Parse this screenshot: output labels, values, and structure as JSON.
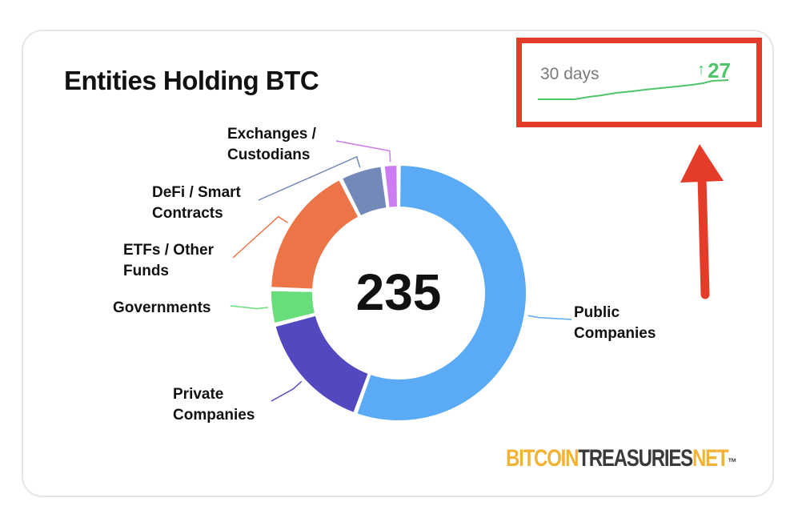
{
  "title": "Entities Holding BTC",
  "trend": {
    "label": "30 days",
    "arrow": "↑",
    "value": "27",
    "line_color": "#4fc46a",
    "highlight_color": "#e53b29"
  },
  "logo": {
    "part1": "BITCOIN",
    "part2": "TREASURIES",
    "part3": "NET",
    "mark": "™"
  },
  "chart_data": {
    "type": "pie",
    "variant": "donut",
    "total": "235",
    "categories": [
      "Public Companies",
      "Private Companies",
      "Governments",
      "ETFs / Other Funds",
      "DeFi / Smart Contracts",
      "Exchanges / Custodians"
    ],
    "label_text": [
      "Public\nCompanies",
      "Private\nCompanies",
      "Governments",
      "ETFs / Other\nFunds",
      "DeFi / Smart\nContracts",
      "Exchanges /\nCustodians"
    ],
    "shares_percent": [
      55.5,
      15.5,
      4.5,
      17.0,
      5.5,
      2.0
    ],
    "colors": [
      "#5aaaf5",
      "#5249c0",
      "#67dd7b",
      "#ec7447",
      "#7289ba",
      "#cd7bf0"
    ]
  }
}
